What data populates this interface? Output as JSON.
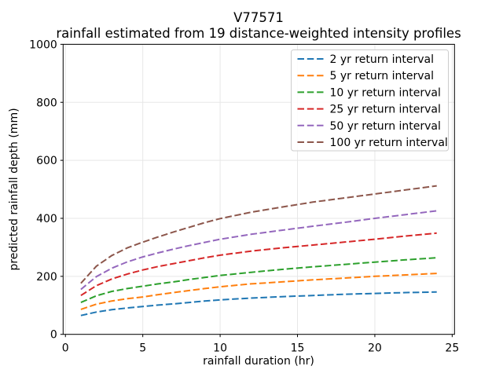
{
  "figure": {
    "title": "V77571",
    "subtitle": "rainfall estimated from 19 distance-weighted intensity profiles"
  },
  "colors": {
    "background": "#ffffff",
    "grid": "#e7e7e7",
    "spine": "#000000",
    "legend_border": "#cccccc"
  },
  "chart_data": {
    "type": "line",
    "title": "V77571",
    "subtitle": "rainfall estimated from 19 distance-weighted intensity profiles",
    "xlabel": "rainfall duration (hr)",
    "ylabel": "predicted rainfall depth (mm)",
    "xlim": [
      -0.15,
      25.15
    ],
    "ylim": [
      0,
      1000
    ],
    "xticks": [
      0,
      5,
      10,
      15,
      20,
      25
    ],
    "yticks": [
      0,
      200,
      400,
      600,
      800,
      1000
    ],
    "grid": true,
    "line_style": "dashed",
    "legend_position": "upper right",
    "x": [
      1,
      2,
      3,
      4,
      5,
      6,
      7,
      8,
      9,
      10,
      12,
      14,
      16,
      18,
      20,
      22,
      24
    ],
    "series": [
      {
        "name": "2 yr return interval",
        "color": "#1f77b4",
        "values": [
          65,
          77,
          85,
          91,
          96,
          101,
          105,
          110,
          115,
          119,
          125,
          130,
          134,
          138,
          141,
          144,
          146
        ]
      },
      {
        "name": "5 yr return interval",
        "color": "#ff7f0e",
        "values": [
          86,
          104,
          115,
          123,
          129,
          137,
          144,
          151,
          158,
          164,
          174,
          181,
          188,
          194,
          200,
          205,
          210
        ]
      },
      {
        "name": "10 yr return interval",
        "color": "#2ca02c",
        "values": [
          110,
          133,
          148,
          158,
          166,
          174,
          181,
          189,
          196,
          203,
          214,
          224,
          233,
          241,
          249,
          257,
          264
        ]
      },
      {
        "name": "25 yr return interval",
        "color": "#d62728",
        "values": [
          134,
          168,
          191,
          208,
          222,
          234,
          244,
          254,
          264,
          273,
          287,
          298,
          308,
          318,
          328,
          339,
          349
        ]
      },
      {
        "name": "50 yr return interval",
        "color": "#9467bd",
        "values": [
          155,
          199,
          228,
          250,
          267,
          281,
          294,
          306,
          317,
          328,
          345,
          359,
          373,
          386,
          400,
          413,
          426
        ]
      },
      {
        "name": "100 yr return interval",
        "color": "#8c564b",
        "values": [
          176,
          235,
          272,
          298,
          318,
          336,
          353,
          369,
          385,
          399,
          421,
          439,
          456,
          470,
          484,
          498,
          512
        ]
      }
    ]
  }
}
